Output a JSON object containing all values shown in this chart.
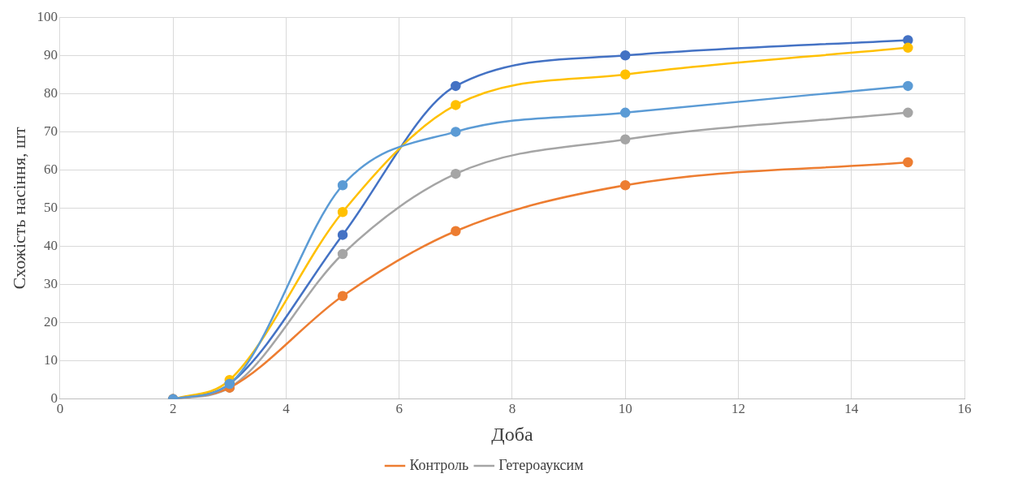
{
  "chart_data": {
    "type": "line",
    "xlabel": "Доба",
    "ylabel": "Схожість насіння, шт",
    "x": [
      2,
      3,
      5,
      7,
      10,
      15
    ],
    "series": [
      {
        "color": "#5b9bd5",
        "values": [
          0,
          4,
          56,
          70,
          75,
          82
        ]
      },
      {
        "name": "Контроль",
        "color": "#ed7d31",
        "values": [
          0,
          3,
          27,
          44,
          56,
          62
        ]
      },
      {
        "name": "Гетероауксим",
        "color": "#a5a5a5",
        "values": [
          0,
          3,
          38,
          59,
          68,
          75
        ]
      },
      {
        "color": "#ffc000",
        "values": [
          0,
          5,
          49,
          77,
          85,
          92
        ]
      },
      {
        "color": "#4472c4",
        "values": [
          0,
          4,
          43,
          82,
          90,
          94
        ]
      }
    ],
    "xlim": [
      0,
      16
    ],
    "xticks": [
      0,
      2,
      4,
      6,
      8,
      10,
      12,
      14,
      16
    ],
    "ylim": [
      0,
      100
    ],
    "yticks": [
      0,
      10,
      20,
      30,
      40,
      50,
      60,
      70,
      80,
      90,
      100
    ],
    "grid": true,
    "legend": "bottom",
    "marker": "circle",
    "line_style": "solid"
  }
}
